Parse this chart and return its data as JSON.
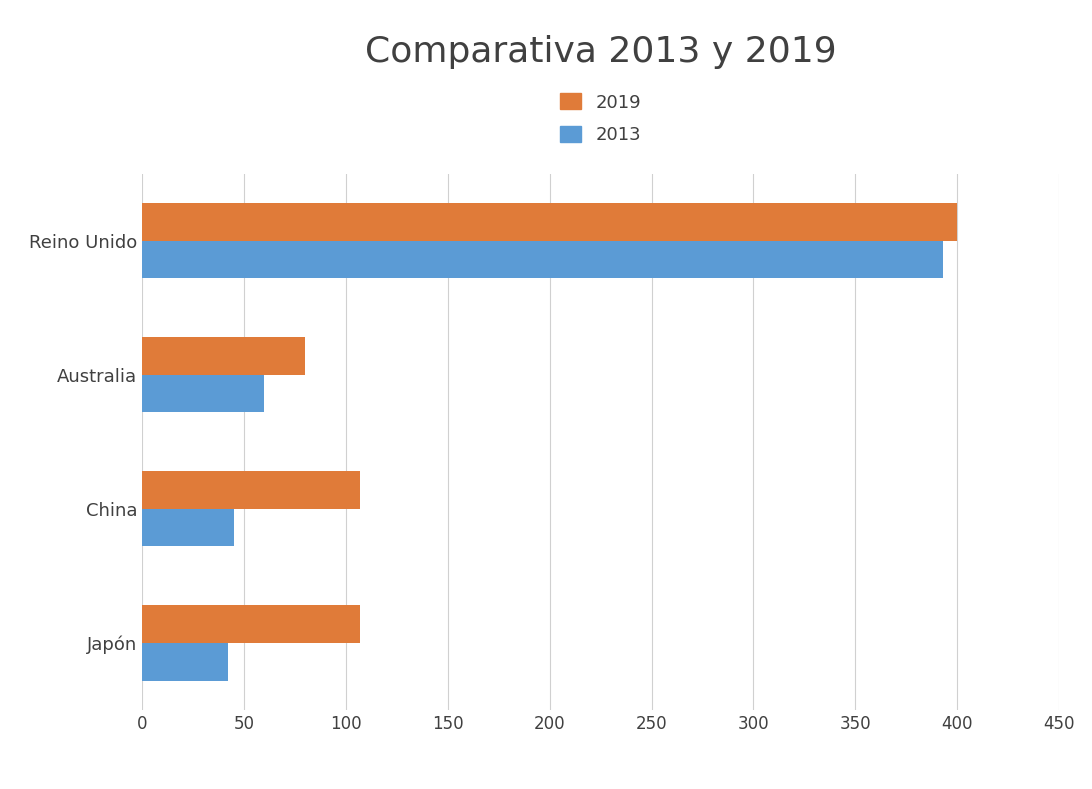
{
  "title": "Comparativa 2013 y 2019",
  "categories": [
    "Reino Unido",
    "Australia",
    "China",
    "Japón"
  ],
  "values_2019": [
    400,
    80,
    107,
    107
  ],
  "values_2013": [
    393,
    60,
    45,
    42
  ],
  "color_2019": "#E07B39",
  "color_2013": "#5B9BD5",
  "xlim": [
    0,
    450
  ],
  "xticks": [
    0,
    50,
    100,
    150,
    200,
    250,
    300,
    350,
    400,
    450
  ],
  "bar_height": 0.28,
  "title_fontsize": 26,
  "tick_fontsize": 12,
  "label_fontsize": 13,
  "legend_fontsize": 13,
  "background_color": "#ffffff"
}
